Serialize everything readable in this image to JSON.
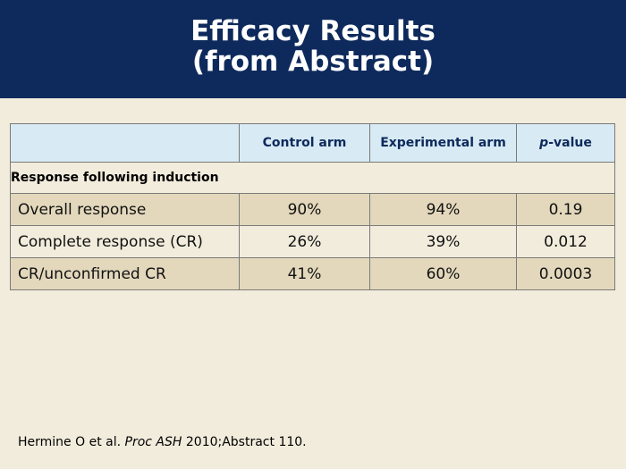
{
  "title": {
    "line1": "Efficacy Results",
    "line2": "(from Abstract)"
  },
  "table": {
    "headers": {
      "col0": "",
      "col1": "Control arm",
      "col2": "Experimental arm",
      "col3_p": "p",
      "col3_rest": "-value"
    },
    "section_label": "Response following induction",
    "rows": [
      {
        "label": "Overall response",
        "control": "90%",
        "experimental": "94%",
        "p": "0.19"
      },
      {
        "label": "Complete response (CR)",
        "control": "26%",
        "experimental": "39%",
        "p": "0.012"
      },
      {
        "label": "CR/unconfirmed CR",
        "control": "41%",
        "experimental": "60%",
        "p": "0.0003"
      }
    ]
  },
  "footer": {
    "authors": "Hermine O et al.",
    "journal": "Proc ASH",
    "citation": "2010;Abstract 110."
  },
  "colors": {
    "title_band": "#0e2a5c",
    "background": "#f2ecdc",
    "header_fill": "#d8eaf4",
    "row_shade": "#e3d8bc"
  }
}
